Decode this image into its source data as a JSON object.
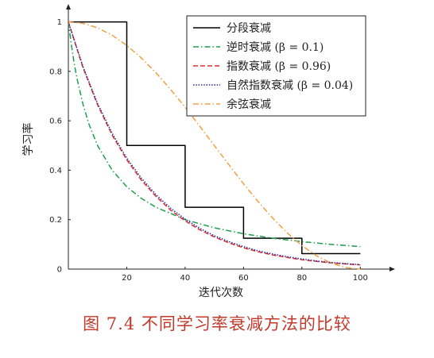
{
  "caption": "图 7.4   不同学习率衰减方法的比较",
  "chart_data": {
    "type": "line",
    "xlabel": "迭代次数",
    "ylabel": "学习率",
    "xlim": [
      0,
      110
    ],
    "ylim": [
      0,
      1.05
    ],
    "xticks": [
      20,
      40,
      60,
      80,
      100
    ],
    "xtick_labels": [
      "20",
      "40",
      "60",
      "80",
      "100"
    ],
    "yticks": [
      0,
      0.2,
      0.4,
      0.6,
      0.8,
      1
    ],
    "ytick_labels": [
      "0",
      "0.2",
      "0.4",
      "0.6",
      "0.8",
      "1"
    ],
    "grid": false,
    "legend_position": "top-right",
    "series": [
      {
        "name": "分段衰减",
        "color": "#000000",
        "dash": "solid",
        "x": [
          0,
          20,
          20,
          40,
          40,
          60,
          60,
          80,
          80,
          100
        ],
        "y": [
          1,
          1,
          0.5,
          0.5,
          0.25,
          0.25,
          0.125,
          0.125,
          0.0625,
          0.0625
        ]
      },
      {
        "name": "逆时衰减 (β = 0.1)",
        "color": "#1aa04a",
        "dash": "dashdot",
        "x": [
          0,
          1,
          2,
          3,
          5,
          7,
          10,
          15,
          20,
          25,
          30,
          40,
          50,
          60,
          70,
          80,
          90,
          100
        ],
        "y": [
          1,
          0.909,
          0.833,
          0.769,
          0.667,
          0.588,
          0.5,
          0.4,
          0.333,
          0.286,
          0.25,
          0.2,
          0.167,
          0.143,
          0.125,
          0.111,
          0.1,
          0.091
        ]
      },
      {
        "name": "指数衰减 (β = 0.96)",
        "color": "#e03030",
        "dash": "dashed",
        "x": [
          0,
          5,
          10,
          15,
          20,
          25,
          30,
          35,
          40,
          45,
          50,
          55,
          60,
          65,
          70,
          75,
          80,
          85,
          90,
          95,
          100
        ],
        "y": [
          1,
          0.815,
          0.665,
          0.542,
          0.442,
          0.36,
          0.294,
          0.239,
          0.195,
          0.159,
          0.13,
          0.106,
          0.086,
          0.07,
          0.057,
          0.047,
          0.038,
          0.031,
          0.025,
          0.021,
          0.017
        ]
      },
      {
        "name": "自然指数衰减 (β = 0.04)",
        "color": "#2a2a9a",
        "dash": "dotted",
        "x": [
          0,
          5,
          10,
          15,
          20,
          25,
          30,
          35,
          40,
          45,
          50,
          55,
          60,
          65,
          70,
          75,
          80,
          85,
          90,
          95,
          100
        ],
        "y": [
          1,
          0.819,
          0.67,
          0.549,
          0.449,
          0.368,
          0.301,
          0.247,
          0.202,
          0.165,
          0.135,
          0.111,
          0.091,
          0.074,
          0.061,
          0.05,
          0.041,
          0.033,
          0.027,
          0.022,
          0.018
        ]
      },
      {
        "name": "余弦衰减",
        "color": "#f0a040",
        "dash": "dashdot",
        "x": [
          0,
          5,
          10,
          15,
          20,
          25,
          30,
          35,
          40,
          45,
          50,
          55,
          60,
          65,
          70,
          75,
          80,
          85,
          90,
          95,
          100
        ],
        "y": [
          1,
          0.994,
          0.976,
          0.946,
          0.905,
          0.854,
          0.794,
          0.727,
          0.655,
          0.578,
          0.5,
          0.422,
          0.345,
          0.273,
          0.206,
          0.146,
          0.095,
          0.054,
          0.024,
          0.006,
          0
        ]
      }
    ]
  }
}
